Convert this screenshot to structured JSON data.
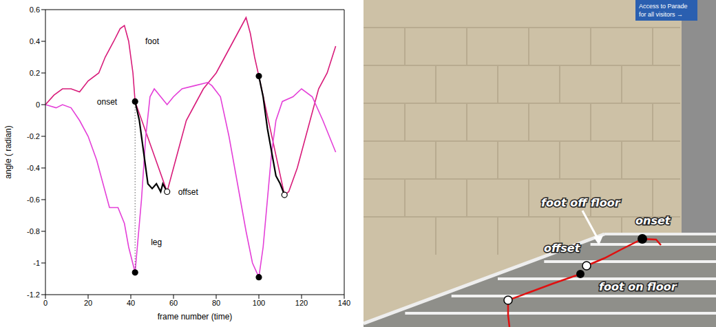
{
  "chart_data": {
    "type": "line",
    "x_label": "frame number (time)",
    "y_label": "angle ( radian)",
    "xlim": [
      0,
      140
    ],
    "xticks": [
      0,
      20,
      40,
      60,
      80,
      100,
      120,
      140
    ],
    "ylim": [
      -1.2,
      0.6
    ],
    "yticks": [
      -1.2,
      -1,
      -0.8,
      -0.6,
      -0.4,
      -0.2,
      0,
      0.2,
      0.4,
      0.6
    ],
    "grid": false,
    "series": [
      {
        "name": "foot",
        "color": "#d81b7a",
        "x": [
          0,
          4,
          8,
          12,
          16,
          20,
          25,
          28,
          32,
          35,
          37,
          39,
          41,
          42,
          57,
          58,
          62,
          66,
          70,
          74,
          80,
          84,
          90,
          94,
          96,
          98,
          100,
          112,
          114,
          118,
          124,
          128,
          132,
          136
        ],
        "values": [
          0,
          0.06,
          0.1,
          0.1,
          0.08,
          0.15,
          0.2,
          0.3,
          0.4,
          0.48,
          0.5,
          0.4,
          0.2,
          0.02,
          -0.55,
          -0.5,
          -0.3,
          -0.1,
          0,
          0.1,
          0.2,
          0.3,
          0.45,
          0.55,
          0.45,
          0.3,
          0.18,
          -0.57,
          -0.55,
          -0.4,
          -0.1,
          0.1,
          0.2,
          0.37
        ]
      },
      {
        "name": "leg",
        "color": "#e43fd8",
        "x": [
          0,
          5,
          8,
          12,
          16,
          20,
          24,
          27,
          30,
          34,
          37,
          39,
          42,
          45,
          47,
          49,
          51,
          54,
          57,
          60,
          64,
          70,
          76,
          78,
          82,
          86,
          90,
          94,
          97,
          100,
          102,
          104,
          106,
          108,
          111,
          116,
          120,
          125,
          130,
          136
        ],
        "values": [
          0,
          -0.02,
          0,
          -0.02,
          -0.1,
          -0.2,
          -0.35,
          -0.5,
          -0.65,
          -0.65,
          -0.75,
          -0.9,
          -1.06,
          -0.6,
          -0.2,
          0.05,
          0.1,
          0.05,
          0,
          0.05,
          0.1,
          0.12,
          0.14,
          0.12,
          0.05,
          -0.2,
          -0.5,
          -0.8,
          -1,
          -1.09,
          -0.9,
          -0.6,
          -0.3,
          -0.1,
          0.02,
          0.05,
          0.1,
          0.05,
          -0.1,
          -0.3
        ]
      }
    ],
    "highlights": [
      {
        "color": "#000000",
        "line_style": "solid",
        "x": [
          42,
          44,
          46,
          48,
          50,
          52,
          54,
          55,
          57
        ],
        "values": [
          0.02,
          -0.1,
          -0.3,
          -0.5,
          -0.53,
          -0.5,
          -0.55,
          -0.5,
          -0.55
        ]
      },
      {
        "color": "#000000",
        "line_style": "solid",
        "x": [
          100,
          102,
          104,
          106,
          108,
          110,
          112
        ],
        "values": [
          0.18,
          0.05,
          -0.15,
          -0.3,
          -0.45,
          -0.5,
          -0.57
        ]
      },
      {
        "color": "#000000",
        "line_style": "dotted",
        "x": [
          42,
          42
        ],
        "values": [
          0.02,
          -1.06
        ]
      }
    ],
    "points": [
      {
        "x": 42,
        "y": 0.02,
        "marker": "filled",
        "label": "onset"
      },
      {
        "x": 42,
        "y": -1.06,
        "marker": "filled"
      },
      {
        "x": 57,
        "y": -0.55,
        "marker": "open",
        "label": "offset"
      },
      {
        "x": 100,
        "y": 0.18,
        "marker": "filled"
      },
      {
        "x": 100,
        "y": -1.09,
        "marker": "filled"
      },
      {
        "x": 112,
        "y": -0.57,
        "marker": "open"
      }
    ]
  },
  "photo": {
    "sign": [
      "Access to Parade",
      "for all visitors →"
    ],
    "annotations": [
      "foot off floor",
      "onset",
      "offset",
      "foot on floor"
    ]
  }
}
